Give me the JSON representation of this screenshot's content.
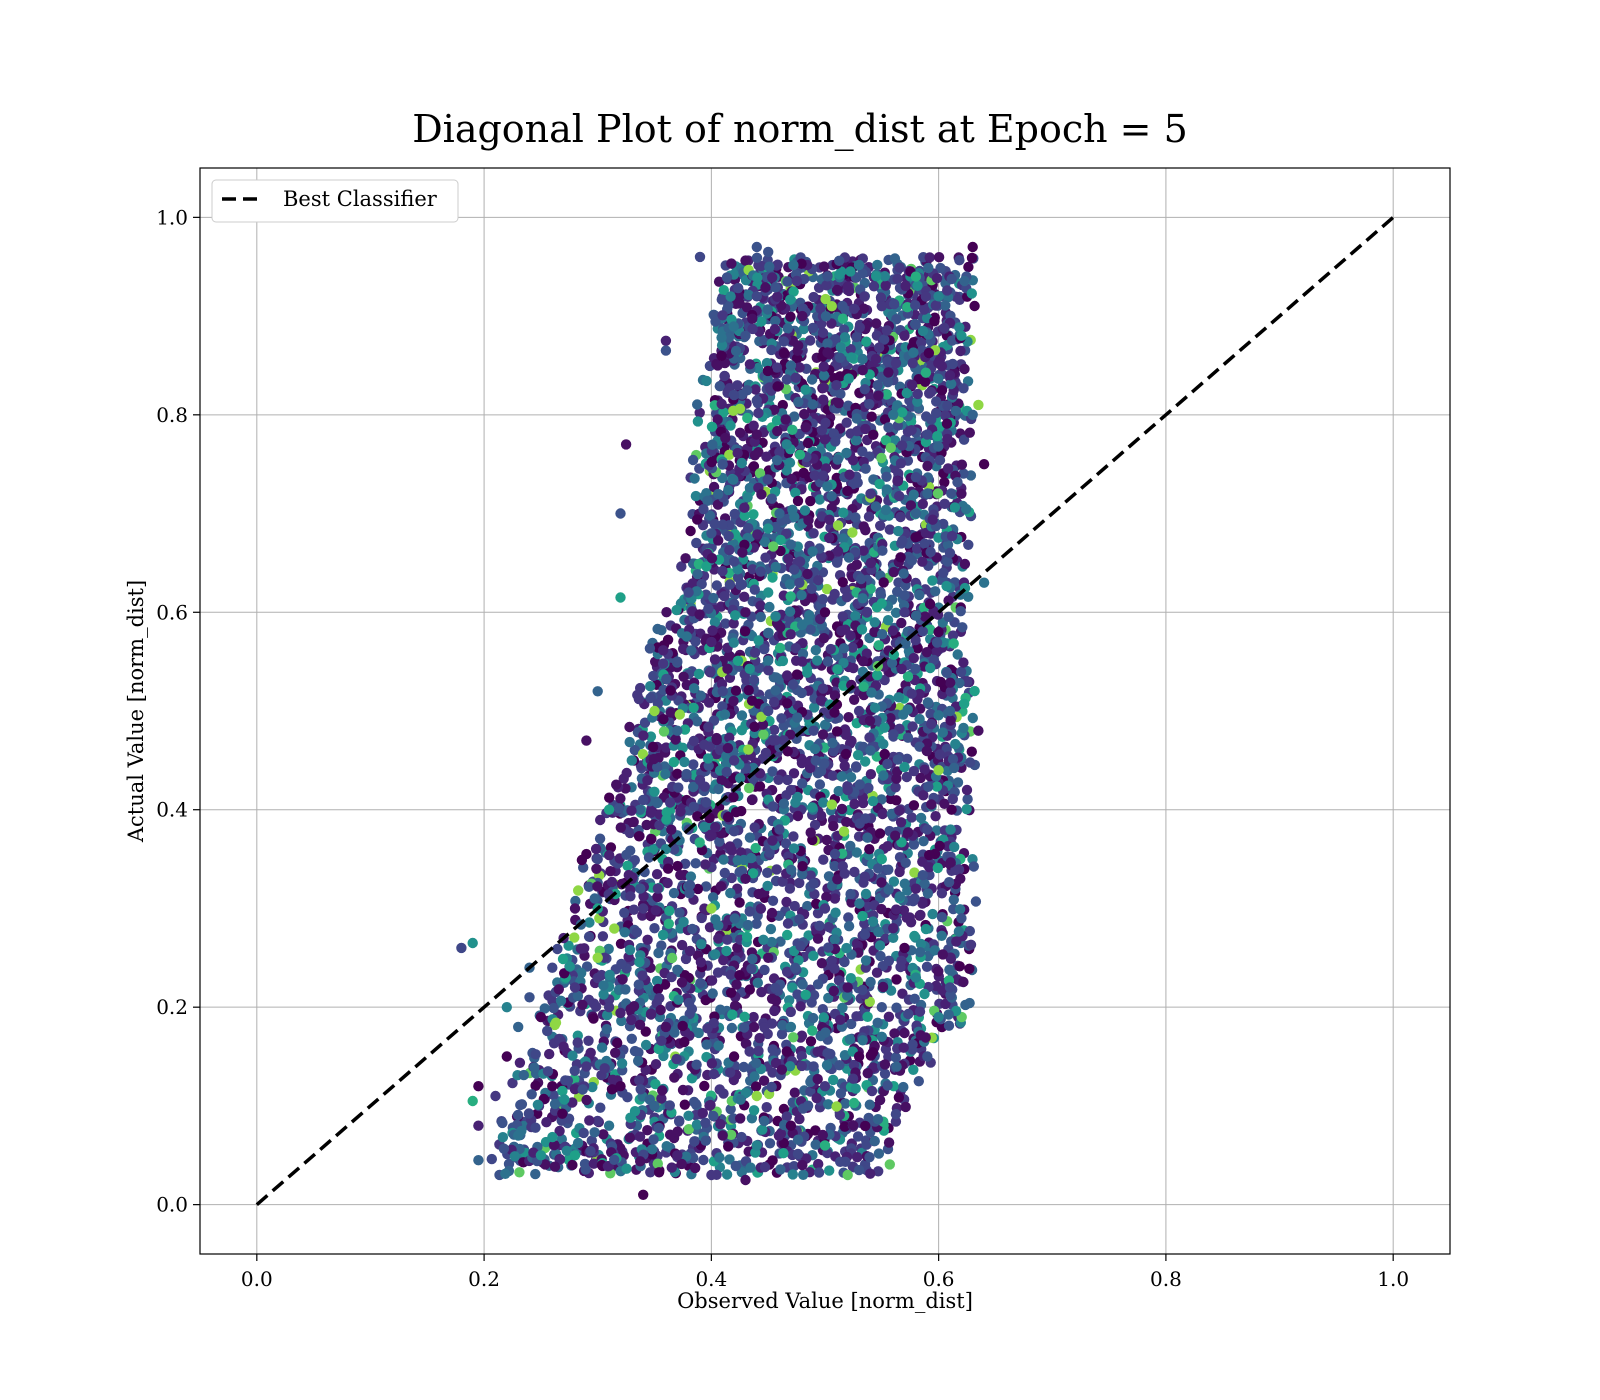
{
  "chart_data": {
    "type": "scatter",
    "title": "Diagonal Plot of norm_dist at Epoch = 5",
    "xlabel": "Observed Value [norm_dist]",
    "ylabel": "Actual Value [norm_dist]",
    "xlim": [
      -0.05,
      1.05
    ],
    "ylim": [
      -0.05,
      1.05
    ],
    "xticks": [
      "0.0",
      "0.2",
      "0.4",
      "0.6",
      "0.8",
      "1.0"
    ],
    "yticks": [
      "0.0",
      "0.2",
      "0.4",
      "0.6",
      "0.8",
      "1.0"
    ],
    "xtick_values": [
      0.0,
      0.2,
      0.4,
      0.6,
      0.8,
      1.0
    ],
    "ytick_values": [
      0.0,
      0.2,
      0.4,
      0.6,
      0.8,
      1.0
    ],
    "grid": true,
    "legend": {
      "position": "upper-left",
      "entries": [
        "Best Classifier"
      ]
    },
    "reference_line": {
      "name": "Best Classifier",
      "style": "dashed",
      "color": "#000000",
      "points": [
        [
          0.0,
          0.0
        ],
        [
          1.0,
          1.0
        ]
      ]
    },
    "colormap": "viridis",
    "scatter_points": [
      [
        0.18,
        0.26
      ],
      [
        0.19,
        0.265
      ],
      [
        0.195,
        0.12
      ],
      [
        0.19,
        0.105
      ],
      [
        0.195,
        0.08
      ],
      [
        0.195,
        0.045
      ],
      [
        0.34,
        0.01
      ],
      [
        0.325,
        0.77
      ],
      [
        0.32,
        0.7
      ],
      [
        0.32,
        0.615
      ],
      [
        0.3,
        0.52
      ],
      [
        0.29,
        0.47
      ],
      [
        0.36,
        0.875
      ],
      [
        0.36,
        0.865
      ],
      [
        0.39,
        0.96
      ],
      [
        0.44,
        0.97
      ],
      [
        0.45,
        0.965
      ],
      [
        0.63,
        0.97
      ],
      [
        0.635,
        0.81
      ],
      [
        0.64,
        0.75
      ],
      [
        0.64,
        0.63
      ],
      [
        0.635,
        0.48
      ],
      [
        0.625,
        0.42
      ],
      [
        0.62,
        0.29
      ],
      [
        0.61,
        0.22
      ],
      [
        0.6,
        0.19
      ],
      [
        0.59,
        0.15
      ],
      [
        0.52,
        0.03
      ],
      [
        0.43,
        0.025
      ],
      [
        0.4,
        0.03
      ],
      [
        0.48,
        0.04
      ],
      [
        0.53,
        0.035
      ],
      [
        0.5,
        0.06
      ],
      [
        0.23,
        0.07
      ],
      [
        0.25,
        0.05
      ],
      [
        0.28,
        0.05
      ],
      [
        0.21,
        0.11
      ],
      [
        0.22,
        0.15
      ],
      [
        0.23,
        0.18
      ],
      [
        0.24,
        0.21
      ],
      [
        0.26,
        0.24
      ],
      [
        0.28,
        0.3
      ],
      [
        0.3,
        0.35
      ],
      [
        0.31,
        0.4
      ],
      [
        0.33,
        0.45
      ],
      [
        0.35,
        0.5
      ],
      [
        0.37,
        0.55
      ],
      [
        0.38,
        0.62
      ],
      [
        0.4,
        0.68
      ],
      [
        0.41,
        0.75
      ],
      [
        0.42,
        0.82
      ],
      [
        0.43,
        0.88
      ],
      [
        0.44,
        0.92
      ],
      [
        0.48,
        0.9
      ],
      [
        0.52,
        0.93
      ],
      [
        0.55,
        0.91
      ],
      [
        0.58,
        0.94
      ],
      [
        0.6,
        0.92
      ],
      [
        0.62,
        0.88
      ],
      [
        0.63,
        0.8
      ],
      [
        0.62,
        0.72
      ],
      [
        0.61,
        0.66
      ],
      [
        0.6,
        0.58
      ],
      [
        0.61,
        0.5
      ],
      [
        0.6,
        0.44
      ],
      [
        0.59,
        0.38
      ],
      [
        0.58,
        0.32
      ],
      [
        0.57,
        0.26
      ],
      [
        0.55,
        0.2
      ],
      [
        0.53,
        0.15
      ],
      [
        0.5,
        0.12
      ],
      [
        0.47,
        0.08
      ],
      [
        0.44,
        0.06
      ],
      [
        0.41,
        0.07
      ],
      [
        0.38,
        0.09
      ],
      [
        0.35,
        0.1
      ],
      [
        0.32,
        0.12
      ],
      [
        0.29,
        0.14
      ],
      [
        0.27,
        0.16
      ],
      [
        0.25,
        0.19
      ],
      [
        0.42,
        0.45
      ],
      [
        0.45,
        0.5
      ],
      [
        0.48,
        0.55
      ],
      [
        0.5,
        0.6
      ],
      [
        0.46,
        0.7
      ],
      [
        0.44,
        0.78
      ],
      [
        0.52,
        0.42
      ],
      [
        0.55,
        0.35
      ],
      [
        0.5,
        0.3
      ],
      [
        0.45,
        0.25
      ],
      [
        0.4,
        0.3
      ],
      [
        0.35,
        0.28
      ],
      [
        0.3,
        0.25
      ],
      [
        0.28,
        0.22
      ],
      [
        0.33,
        0.33
      ],
      [
        0.38,
        0.38
      ],
      [
        0.47,
        0.42
      ],
      [
        0.53,
        0.5
      ],
      [
        0.57,
        0.6
      ],
      [
        0.58,
        0.7
      ],
      [
        0.56,
        0.8
      ],
      [
        0.51,
        0.83
      ],
      [
        0.47,
        0.85
      ],
      [
        0.43,
        0.6
      ],
      [
        0.41,
        0.52
      ],
      [
        0.39,
        0.43
      ],
      [
        0.36,
        0.36
      ],
      [
        0.34,
        0.3
      ],
      [
        0.31,
        0.2
      ],
      [
        0.36,
        0.18
      ],
      [
        0.42,
        0.15
      ],
      [
        0.47,
        0.18
      ],
      [
        0.52,
        0.22
      ],
      [
        0.56,
        0.28
      ],
      [
        0.54,
        0.46
      ],
      [
        0.49,
        0.48
      ],
      [
        0.46,
        0.38
      ],
      [
        0.43,
        0.33
      ],
      [
        0.49,
        0.68
      ],
      [
        0.54,
        0.72
      ],
      [
        0.59,
        0.78
      ],
      [
        0.61,
        0.84
      ],
      [
        0.57,
        0.88
      ],
      [
        0.45,
        0.62
      ],
      [
        0.4,
        0.57
      ],
      [
        0.37,
        0.48
      ],
      [
        0.34,
        0.41
      ],
      [
        0.3,
        0.3
      ],
      [
        0.27,
        0.27
      ],
      [
        0.24,
        0.24
      ],
      [
        0.22,
        0.2
      ],
      [
        0.26,
        0.12
      ],
      [
        0.31,
        0.08
      ],
      [
        0.37,
        0.05
      ],
      [
        0.44,
        0.11
      ],
      [
        0.49,
        0.14
      ],
      [
        0.55,
        0.17
      ],
      [
        0.58,
        0.23
      ]
    ]
  }
}
